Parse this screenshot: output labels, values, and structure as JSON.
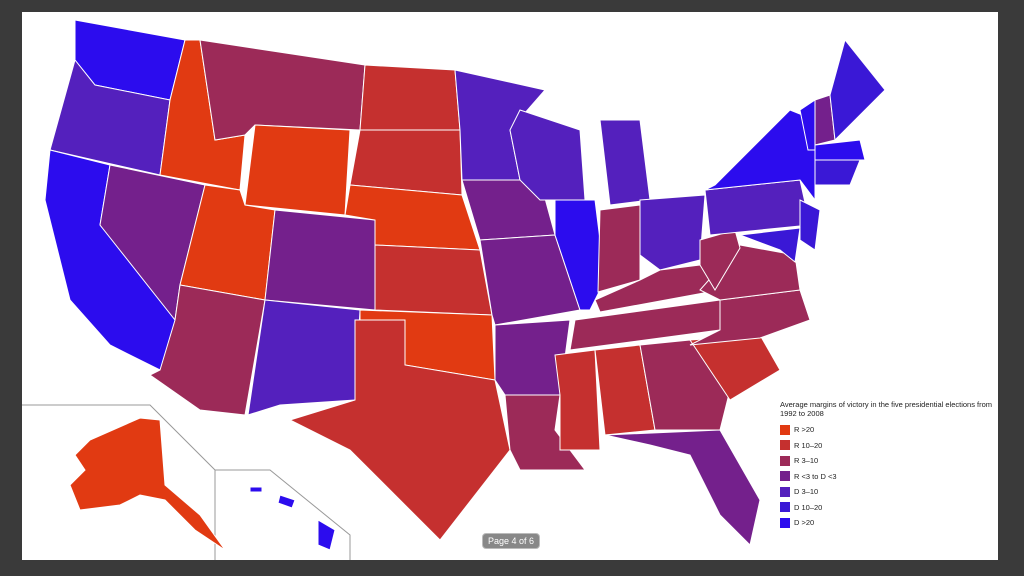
{
  "legend": {
    "title": "Average margins of victory in the five presidential elections from 1992 to 2008",
    "items": [
      {
        "label": "R >20",
        "color": "#e13a12"
      },
      {
        "label": "R 10–20",
        "color": "#c5302f"
      },
      {
        "label": "R 3–10",
        "color": "#9c2a58"
      },
      {
        "label": "R <3 to D <3",
        "color": "#74208c"
      },
      {
        "label": "D 3–10",
        "color": "#5420bd"
      },
      {
        "label": "D 10–20",
        "color": "#3a18d6"
      },
      {
        "label": "D >20",
        "color": "#2c0cee"
      }
    ]
  },
  "page_indicator": "Page 4 of 6"
}
